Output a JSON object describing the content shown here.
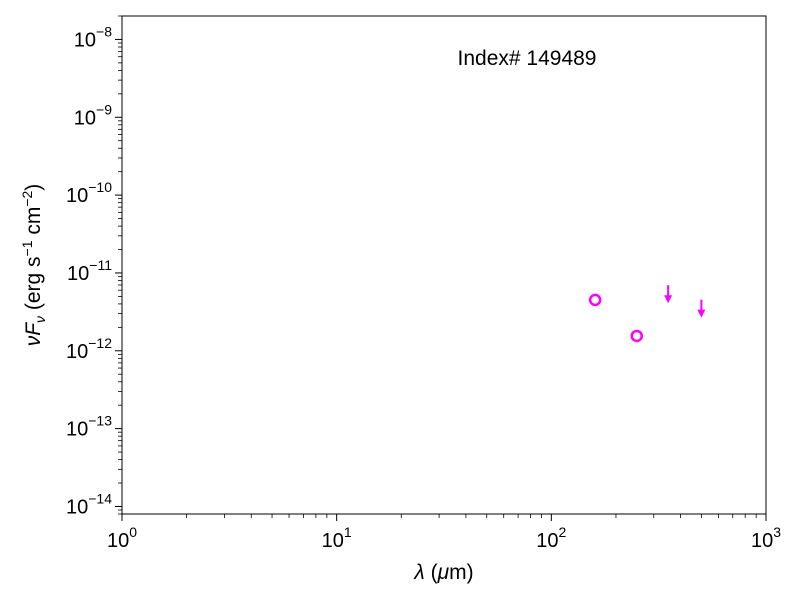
{
  "chart_data": {
    "type": "scatter",
    "title": "",
    "annotation": "Index# 149489",
    "xlabel": "λ (μm)",
    "ylabel": "νFν (erg s⁻¹ cm⁻²)",
    "xscale": "log",
    "yscale": "log",
    "xlim": [
      1,
      1000
    ],
    "ylim": [
      8e-15,
      2e-08
    ],
    "x_ticks": [
      {
        "base": "10",
        "exp": "0",
        "value": 1
      },
      {
        "base": "10",
        "exp": "1",
        "value": 10
      },
      {
        "base": "10",
        "exp": "2",
        "value": 100
      },
      {
        "base": "10",
        "exp": "3",
        "value": 1000
      }
    ],
    "y_ticks": [
      {
        "base": "10",
        "exp": "−14",
        "value": 1e-14
      },
      {
        "base": "10",
        "exp": "−13",
        "value": 1e-13
      },
      {
        "base": "10",
        "exp": "−12",
        "value": 1e-12
      },
      {
        "base": "10",
        "exp": "−11",
        "value": 1e-11
      },
      {
        "base": "10",
        "exp": "−10",
        "value": 1e-10
      },
      {
        "base": "10",
        "exp": "−9",
        "value": 1e-09
      },
      {
        "base": "10",
        "exp": "−8",
        "value": 1e-08
      }
    ],
    "grid": false,
    "series": [
      {
        "marker": "open-circle",
        "color": "#ff00ff",
        "points": [
          {
            "x": 160,
            "y": 4.5e-12
          },
          {
            "x": 250,
            "y": 1.55e-12
          }
        ]
      },
      {
        "marker": "upper-limit-arrow",
        "color": "#ff00ff",
        "points": [
          {
            "x": 350,
            "y": 4.6e-12
          },
          {
            "x": 500,
            "y": 3e-12
          }
        ]
      }
    ]
  }
}
